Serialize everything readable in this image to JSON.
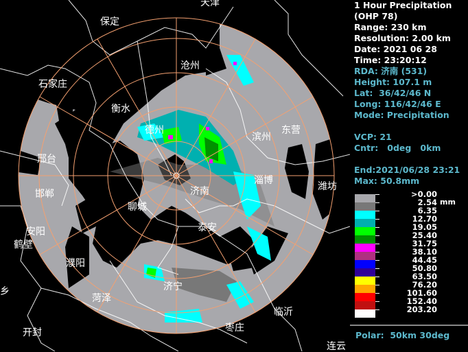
{
  "map": {
    "range_rings_km": [
      50,
      100,
      150,
      200,
      230
    ],
    "spoke_interval_deg": 30,
    "ring_color": "#f4a070",
    "echo_colors": {
      "light": "#a8a8ac",
      "dark": "#787878",
      "cyan": "#00ffff",
      "teal": "#00b4b4",
      "green": "#00ff00",
      "dkgreen": "#009000",
      "magenta": "#ff00ff"
    },
    "cities": [
      "天津",
      "保定",
      "沧州",
      "石家庄",
      "衡水",
      "德州",
      "滨州",
      "东营",
      "邢台",
      "淄博",
      "潍坊",
      "邯郸",
      "济南",
      "聊城",
      "泰安",
      "安阳",
      "鹤壁",
      "濮阳",
      "济宁",
      "菏泽",
      "临沂",
      "新乡",
      "开封",
      "枣庄",
      "连云"
    ]
  },
  "panel": {
    "title": "1 Hour Precipitation",
    "product": "(OHP 78)",
    "range": "Range: 230 km",
    "resolution": "Resolution: 2.00 km",
    "date": "Date: 2021 06 28",
    "time": "Time: 23:20:12",
    "rda": "RDA: 济南 (531)",
    "height": "Height: 107.1 m",
    "lat": "Lat:  36/42/46 N",
    "long": "Long: 116/42/46 E",
    "mode": "Mode: Precipitation",
    "vcp": "VCP: 21",
    "cntr": "Cntr:   0deg   0km",
    "end": "End:2021/06/28 23:21",
    "max": "Max: 50.8mm"
  },
  "legend": {
    "unit": "mm",
    "levels": [
      {
        "label": ">0.00",
        "color": "#a8a8ac"
      },
      {
        "label": "2.54",
        "color": "#787878"
      },
      {
        "label": "6.35",
        "color": "#00ffff"
      },
      {
        "label": "12.70",
        "color": "#00b0b0"
      },
      {
        "label": "19.05",
        "color": "#00ff00"
      },
      {
        "label": "25.40",
        "color": "#009000"
      },
      {
        "label": "31.75",
        "color": "#ff00ff"
      },
      {
        "label": "38.10",
        "color": "#b03080"
      },
      {
        "label": "44.45",
        "color": "#0000ff"
      },
      {
        "label": "50.80",
        "color": "#300098"
      },
      {
        "label": "63.50",
        "color": "#ffff00"
      },
      {
        "label": "76.20",
        "color": "#ffa800"
      },
      {
        "label": "101.60",
        "color": "#ff0000"
      },
      {
        "label": "152.40",
        "color": "#c01010"
      },
      {
        "label": "203.20",
        "color": "#ffffff"
      }
    ]
  },
  "polar": "Polar:  50km 30deg"
}
